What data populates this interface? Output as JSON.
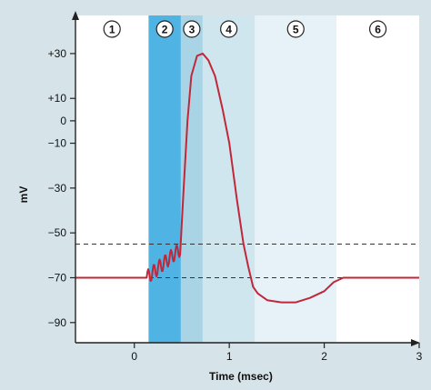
{
  "chart_data": {
    "type": "line",
    "xlabel": "Time (msec)",
    "ylabel": "mV",
    "xlim": [
      -0.62,
      3.0
    ],
    "ylim": [
      -99,
      47
    ],
    "x_ticks": [
      {
        "value": 0,
        "label": "0"
      },
      {
        "value": 1,
        "label": "1"
      },
      {
        "value": 2,
        "label": "2"
      },
      {
        "value": 3,
        "label": "3"
      }
    ],
    "y_ticks": [
      {
        "value": 30,
        "label": "+30"
      },
      {
        "value": 10,
        "label": "+10"
      },
      {
        "value": 0,
        "label": "0"
      },
      {
        "value": -10,
        "label": "−10"
      },
      {
        "value": -30,
        "label": "−30"
      },
      {
        "value": -50,
        "label": "−50"
      },
      {
        "value": -70,
        "label": "−70"
      },
      {
        "value": -90,
        "label": "−90"
      }
    ],
    "reference_lines": [
      {
        "name": "threshold",
        "y": -55
      },
      {
        "name": "resting",
        "y": -70
      }
    ],
    "phases": [
      {
        "label": "1",
        "x_start": -0.62,
        "x_end": 0.15,
        "color": "#ffffff"
      },
      {
        "label": "2",
        "x_start": 0.15,
        "x_end": 0.49,
        "color": "#4fb3e4"
      },
      {
        "label": "3",
        "x_start": 0.49,
        "x_end": 0.72,
        "color": "#a9d4e6"
      },
      {
        "label": "4",
        "x_start": 0.72,
        "x_end": 1.27,
        "color": "#cfe6ef"
      },
      {
        "label": "5",
        "x_start": 1.27,
        "x_end": 2.13,
        "color": "#e6f2f7"
      },
      {
        "label": "6",
        "x_start": 2.13,
        "x_end": 3.0,
        "color": "#ffffff"
      }
    ],
    "series": [
      {
        "color": "#c0283a",
        "x": [
          -0.62,
          0.05,
          0.12,
          0.15,
          0.2,
          0.25,
          0.3,
          0.35,
          0.4,
          0.45,
          0.49,
          0.52,
          0.56,
          0.6,
          0.66,
          0.72,
          0.78,
          0.85,
          0.93,
          1.0,
          1.08,
          1.15,
          1.2,
          1.25,
          1.3,
          1.4,
          1.55,
          1.7,
          1.85,
          2.0,
          2.1,
          2.2,
          2.5,
          3.0
        ],
        "y": [
          -70,
          -70,
          -70,
          -65,
          -63,
          -63,
          -62,
          -61,
          -60,
          -59,
          -57,
          -30,
          0,
          20,
          29,
          30,
          27,
          20,
          5,
          -10,
          -35,
          -55,
          -65,
          -74,
          -77,
          -80,
          -81,
          -81,
          -79,
          -76,
          -72,
          -70,
          -70,
          -70
        ]
      }
    ]
  }
}
